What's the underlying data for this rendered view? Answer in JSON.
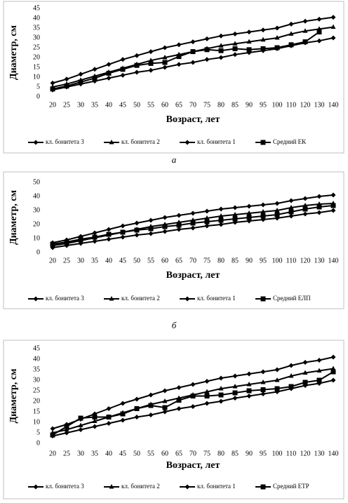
{
  "chart_data": [
    {
      "type": "line",
      "caption": "а",
      "x_label": "Возраст, лет",
      "y_label": "Диаметр, см",
      "categories": [
        "20",
        "25",
        "30",
        "35",
        "40",
        "45",
        "50",
        "55",
        "60",
        "65",
        "70",
        "75",
        "80",
        "85",
        "90",
        "95",
        "100",
        "110",
        "120",
        "130",
        "140"
      ],
      "ylim": [
        0,
        45
      ],
      "yticks": [
        0,
        5,
        10,
        15,
        20,
        25,
        30,
        35,
        40,
        45
      ],
      "grid": false,
      "legend": "bottom",
      "series": [
        {
          "name": "кл. бонитета 3",
          "color": "#000000",
          "marker": "diamond",
          "values": [
            3.5,
            5,
            6.5,
            8,
            9.5,
            11,
            12.5,
            13.5,
            15,
            16.5,
            17.5,
            19,
            20,
            21.5,
            22.5,
            23.5,
            24.5,
            26,
            27.5,
            28.5,
            30
          ]
        },
        {
          "name": "кл. бонитета 2",
          "color": "#000000",
          "marker": "triangle",
          "values": [
            5,
            6.5,
            8.5,
            10.5,
            12.5,
            14.5,
            16.5,
            18.5,
            20,
            21.5,
            23,
            24.5,
            26,
            27,
            28,
            29,
            30,
            32,
            33.5,
            34.5,
            35.5
          ]
        },
        {
          "name": "кл. бонитета 1",
          "color": "#000000",
          "marker": "diamond",
          "values": [
            7,
            9,
            11.5,
            14,
            16.5,
            19,
            21,
            23,
            25,
            26.5,
            28,
            29.5,
            31,
            32,
            33,
            34,
            35,
            37,
            38.5,
            39.5,
            40.5
          ]
        },
        {
          "name": "Средний ЕК",
          "color": "#000000",
          "marker": "square",
          "values": [
            4,
            5.5,
            7.5,
            9.5,
            12,
            14,
            16,
            17,
            17.5,
            20.5,
            23,
            24,
            23.5,
            24.5,
            24,
            24.5,
            25,
            26.5,
            28,
            33,
            null
          ]
        }
      ]
    },
    {
      "type": "line",
      "caption": "б",
      "x_label": "Возраст, лет",
      "y_label": "Диаметр, см",
      "categories": [
        "20",
        "25",
        "30",
        "35",
        "40",
        "45",
        "50",
        "55",
        "60",
        "65",
        "70",
        "75",
        "80",
        "85",
        "90",
        "95",
        "100",
        "110",
        "120",
        "130",
        "140"
      ],
      "ylim": [
        0,
        50
      ],
      "yticks": [
        0,
        10,
        20,
        30,
        40,
        50
      ],
      "grid": false,
      "legend": "bottom",
      "series": [
        {
          "name": "кл. бонитета 3",
          "color": "#000000",
          "marker": "diamond",
          "values": [
            3.5,
            5,
            6.5,
            8,
            9.5,
            11,
            12.5,
            13.5,
            15,
            16.5,
            17.5,
            19,
            20,
            21.5,
            22.5,
            23.5,
            24.5,
            26,
            27.5,
            28.5,
            30
          ]
        },
        {
          "name": "кл. бонитета 2",
          "color": "#000000",
          "marker": "triangle",
          "values": [
            5,
            6.5,
            8.5,
            10.5,
            12.5,
            14.5,
            16.5,
            18.5,
            20,
            21.5,
            23,
            24.5,
            26,
            27,
            28,
            29,
            30,
            32,
            33.5,
            34.5,
            35
          ]
        },
        {
          "name": "кл. бонитета 1",
          "color": "#000000",
          "marker": "diamond",
          "values": [
            7,
            9,
            11.5,
            14,
            16.5,
            19,
            21,
            23,
            25,
            26.5,
            28,
            29.5,
            31,
            32,
            33,
            34,
            35,
            37,
            38.5,
            40,
            41
          ]
        },
        {
          "name": "Средний ЕЛП",
          "color": "#000000",
          "marker": "square",
          "values": [
            6,
            7.5,
            9.5,
            11,
            13,
            14.5,
            16,
            17,
            18.5,
            19.5,
            21,
            22,
            23,
            24,
            25,
            26,
            27,
            29,
            31,
            32.5,
            33.5
          ]
        }
      ]
    },
    {
      "type": "line",
      "x_label": "Возраст, лет",
      "y_label": "Диаметр, см",
      "categories": [
        "20",
        "25",
        "30",
        "35",
        "40",
        "45",
        "50",
        "55",
        "60",
        "65",
        "70",
        "75",
        "80",
        "85",
        "90",
        "95",
        "100",
        "110",
        "120",
        "130",
        "140"
      ],
      "ylim": [
        0,
        45
      ],
      "yticks": [
        0,
        5,
        10,
        15,
        20,
        25,
        30,
        35,
        40,
        45
      ],
      "grid": false,
      "legend": "bottom",
      "series": [
        {
          "name": "кл. бонитета 3",
          "color": "#000000",
          "marker": "diamond",
          "values": [
            3.5,
            5,
            6.5,
            8,
            9.5,
            11,
            12.5,
            13.5,
            15,
            16.5,
            17.5,
            19,
            20,
            21.5,
            22.5,
            23.5,
            24.5,
            26,
            27.5,
            28.5,
            30
          ]
        },
        {
          "name": "кл. бонитета 2",
          "color": "#000000",
          "marker": "triangle",
          "values": [
            5,
            6.5,
            8.5,
            10.5,
            12.5,
            14.5,
            16.5,
            18.5,
            20,
            21.5,
            23,
            24.5,
            26,
            27,
            28,
            29,
            30,
            32,
            33.5,
            34.5,
            35.5
          ]
        },
        {
          "name": "кл. бонитета 1",
          "color": "#000000",
          "marker": "diamond",
          "values": [
            7,
            9,
            11.5,
            14,
            16.5,
            19,
            21,
            23,
            25,
            26.5,
            28,
            29.5,
            31,
            32,
            33,
            34,
            35,
            37,
            38.5,
            39.5,
            41
          ]
        },
        {
          "name": "Средний ЕТР",
          "color": "#000000",
          "marker": "square",
          "values": [
            4,
            8,
            12,
            12.5,
            12.5,
            14,
            16.5,
            18,
            17,
            20.5,
            22.5,
            22.5,
            23,
            24,
            25,
            25.5,
            26,
            27,
            29,
            30,
            34
          ]
        }
      ]
    }
  ]
}
